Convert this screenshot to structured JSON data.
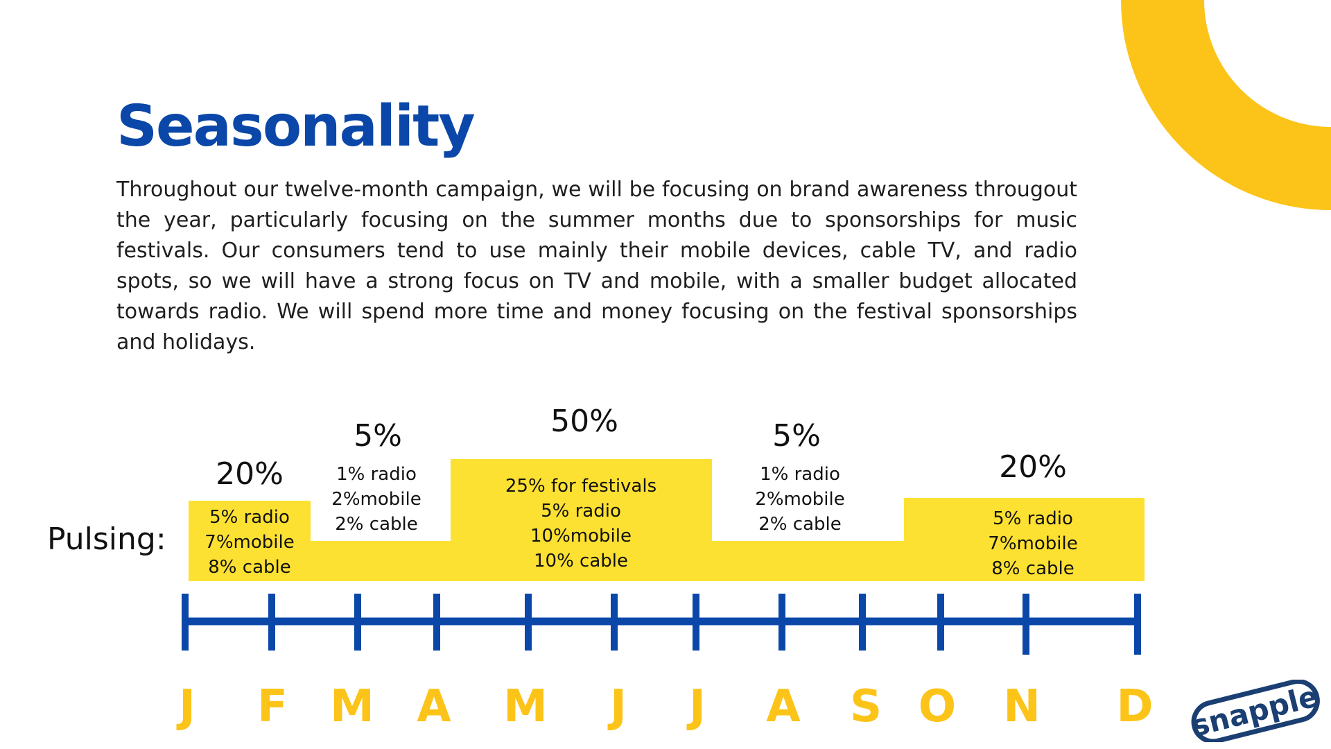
{
  "title": "Seasonality",
  "body": "Throughout our twelve-month campaign, we will be focusing on brand awareness througout the year, particularly focusing on the summer months due to sponsorships for music festivals.  Our consumers tend to use mainly their mobile devices, cable TV, and radio spots, so we will have a strong focus on TV and mobile, with a smaller budget allocated towards radio.  We will spend more time  and money focusing on the festival sponsorships and holidays.",
  "pulsing_label": "Pulsing:",
  "logo_text": "snapple",
  "colors": {
    "title_blue": "#0a47a8",
    "timeline_blue": "#0a47a8",
    "bar_yellow": "#fde132",
    "month_yellow": "#fcc419",
    "ring_yellow": "#fcc419",
    "logo_blue": "#1b3f72"
  },
  "chart_data": {
    "type": "bar",
    "months": [
      "J",
      "F",
      "M",
      "A",
      "M",
      "J",
      "J",
      "A",
      "S",
      "O",
      "N",
      "D"
    ],
    "segments": [
      {
        "label": "20%",
        "lines": [
          "5% radio",
          "7%mobile",
          "8% cable"
        ]
      },
      {
        "label": "5%",
        "lines": [
          "1% radio",
          "2%mobile",
          "2% cable"
        ]
      },
      {
        "label": "50%",
        "lines": [
          "25% for festivals",
          "5% radio",
          "10%mobile",
          "10% cable"
        ]
      },
      {
        "label": "5%",
        "lines": [
          "1% radio",
          "2%mobile",
          "2% cable"
        ]
      },
      {
        "label": "20%",
        "lines": [
          "5% radio",
          "7%mobile",
          "8% cable"
        ]
      }
    ]
  }
}
